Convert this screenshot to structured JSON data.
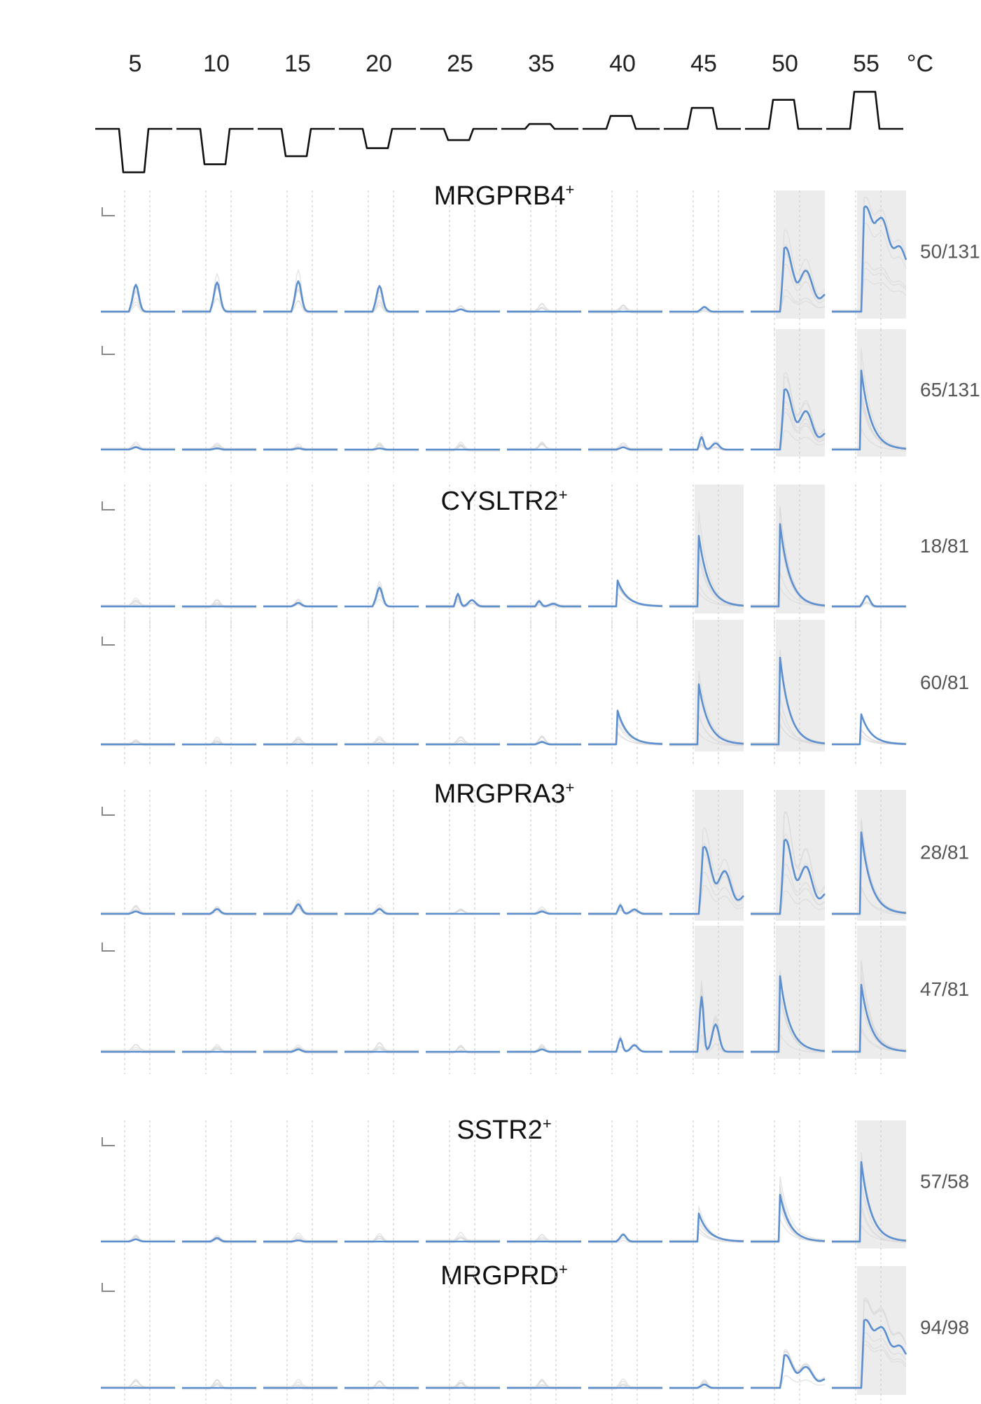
{
  "chart_data": {
    "type": "line",
    "temperatures": [
      "5",
      "10",
      "15",
      "20",
      "25",
      "35",
      "40",
      "45",
      "50",
      "55"
    ],
    "temperature_unit": "°C",
    "stimulus_deltas_c": [
      -27,
      -22,
      -17,
      -12,
      -7,
      3,
      8,
      13,
      18,
      23
    ],
    "baseline_temperature_c": 32,
    "mean_trace_color": "#5b8fd0",
    "individual_trace_color": "#d9d9d9",
    "stimulus_trace_color": "#111111",
    "groups": [
      {
        "name": "MRGPRB4",
        "superscript": "+",
        "rows": [
          {
            "count_label": "50/131",
            "peaks": [
              0.23,
              0.25,
              0.26,
              0.22,
              0.02,
              0.0,
              0.0,
              0.04,
              0.55,
              0.9
            ],
            "shapes": [
              "spike",
              "spike",
              "spike",
              "spike",
              "spike",
              "flat",
              "flat",
              "spike",
              "bumpy",
              "plateau"
            ]
          },
          {
            "count_label": "65/131",
            "peaks": [
              0.02,
              0.01,
              0.01,
              0.01,
              0.0,
              0.0,
              0.02,
              0.12,
              0.52,
              0.68
            ],
            "shapes": [
              "spike",
              "spike",
              "spike",
              "spike",
              "flat",
              "flat",
              "spike",
              "double",
              "bumpy",
              "decay"
            ]
          }
        ]
      },
      {
        "name": "CYSLTR2",
        "superscript": "+",
        "rows": [
          {
            "count_label": "18/81",
            "peaks": [
              0.0,
              0.0,
              0.03,
              0.16,
              0.12,
              0.05,
              0.22,
              0.6,
              0.7,
              0.09
            ],
            "shapes": [
              "flat",
              "flat",
              "spike",
              "spike",
              "double",
              "double",
              "decay",
              "decay",
              "decay",
              "spike"
            ]
          },
          {
            "count_label": "60/81",
            "peaks": [
              0.0,
              0.0,
              0.0,
              0.0,
              0.0,
              0.02,
              0.28,
              0.5,
              0.72,
              0.25
            ],
            "shapes": [
              "flat",
              "flat",
              "flat",
              "flat",
              "flat",
              "spike",
              "decay",
              "decay",
              "decay",
              "decay"
            ]
          }
        ]
      },
      {
        "name": "MRGPRA3",
        "superscript": "+",
        "rows": [
          {
            "count_label": "28/81",
            "peaks": [
              0.02,
              0.04,
              0.08,
              0.04,
              0.01,
              0.02,
              0.08,
              0.56,
              0.62,
              0.68
            ],
            "shapes": [
              "spike",
              "spike",
              "spike",
              "spike",
              "flat",
              "spike",
              "double",
              "bumpy",
              "bumpy",
              "decay"
            ]
          },
          {
            "count_label": "47/81",
            "peaks": [
              0.01,
              0.01,
              0.02,
              0.01,
              0.01,
              0.02,
              0.12,
              0.5,
              0.62,
              0.55
            ],
            "shapes": [
              "flat",
              "flat",
              "spike",
              "flat",
              "flat",
              "spike",
              "double",
              "double",
              "decay",
              "decay"
            ]
          }
        ]
      },
      {
        "name": "SSTR2",
        "superscript": "+",
        "rows": [
          {
            "count_label": "57/58",
            "peaks": [
              0.02,
              0.03,
              0.01,
              0.0,
              0.0,
              0.0,
              0.06,
              0.24,
              0.4,
              0.68
            ],
            "shapes": [
              "spike",
              "spike",
              "spike",
              "flat",
              "flat",
              "flat",
              "spike",
              "decay",
              "decay",
              "decay"
            ]
          }
        ]
      },
      {
        "name": "MRGPRD",
        "superscript": "+",
        "rows": [
          {
            "count_label": "94/98",
            "peaks": [
              0.01,
              0.0,
              0.0,
              0.0,
              0.0,
              0.0,
              0.0,
              0.03,
              0.28,
              0.58
            ],
            "shapes": [
              "flat",
              "flat",
              "flat",
              "flat",
              "flat",
              "flat",
              "flat",
              "spike",
              "bumpy",
              "plateau"
            ]
          }
        ]
      }
    ]
  }
}
